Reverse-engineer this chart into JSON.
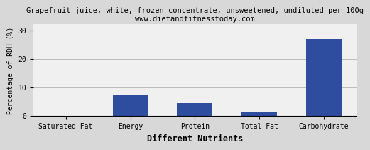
{
  "title": "Grapefruit juice, white, frozen concentrate, unsweetened, undiluted per 100g",
  "subtitle": "www.dietandfitnesstoday.com",
  "categories": [
    "Saturated Fat",
    "Energy",
    "Protein",
    "Total Fat",
    "Carbohydrate"
  ],
  "values": [
    0.05,
    7.1,
    4.5,
    1.1,
    27.0
  ],
  "bar_color": "#2e4d9e",
  "xlabel": "Different Nutrients",
  "ylabel": "Percentage of RDH (%)",
  "ylim": [
    0,
    32
  ],
  "yticks": [
    0,
    10,
    20,
    30
  ],
  "title_fontsize": 7.5,
  "subtitle_fontsize": 7.5,
  "xlabel_fontsize": 8.5,
  "ylabel_fontsize": 7.0,
  "tick_fontsize": 7.0,
  "background_color": "#d8d8d8",
  "plot_background": "#f0f0f0",
  "grid_color": "#bbbbbb"
}
